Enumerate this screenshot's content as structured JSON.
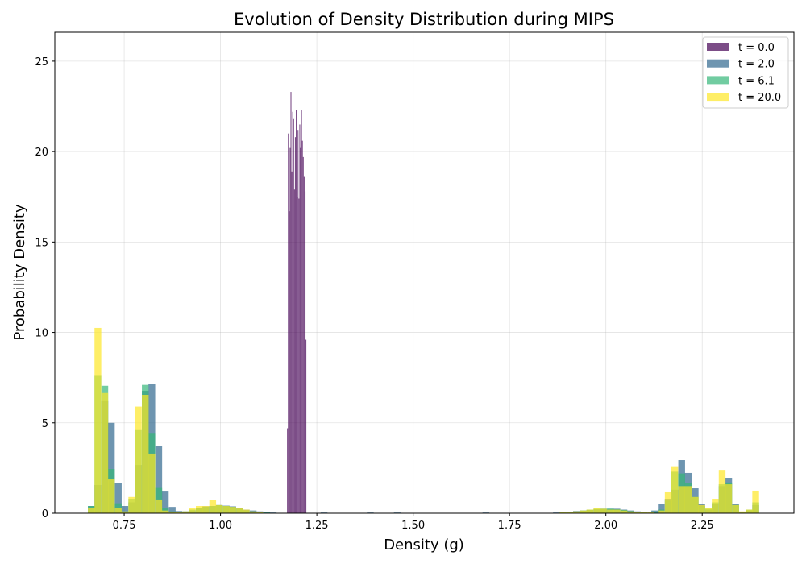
{
  "chart_data": {
    "type": "bar",
    "subtype": "overlapping-histogram",
    "title": "Evolution of Density Distribution during MIPS",
    "xlabel": "Density (g)",
    "ylabel": "Probability Density",
    "xlim": [
      0.57,
      2.488
    ],
    "ylim": [
      0,
      26.6
    ],
    "xticks": [
      "0.75",
      "1.00",
      "1.25",
      "1.50",
      "1.75",
      "2.00",
      "2.25"
    ],
    "xtick_values": [
      0.75,
      1.0,
      1.25,
      1.5,
      1.75,
      2.0,
      2.25
    ],
    "yticks": [
      "0",
      "5",
      "10",
      "15",
      "20",
      "25"
    ],
    "ytick_values": [
      0,
      5,
      10,
      15,
      20,
      25
    ],
    "grid": true,
    "legend_position": "top-right",
    "opacity": 0.7,
    "series": [
      {
        "name": "t = 0.0",
        "color": "#440154",
        "binwidth": 0.00228,
        "bins": [
          [
            1.1726,
            4.7
          ],
          [
            1.1749,
            21
          ],
          [
            1.1772,
            16.7
          ],
          [
            1.1794,
            20.2
          ],
          [
            1.1817,
            23.3
          ],
          [
            1.184,
            18.9
          ],
          [
            1.1863,
            22.2
          ],
          [
            1.1886,
            21.8
          ],
          [
            1.1909,
            17.9
          ],
          [
            1.1931,
            20.8
          ],
          [
            1.1954,
            22.3
          ],
          [
            1.1977,
            17.5
          ],
          [
            1.2,
            21.2
          ],
          [
            1.2023,
            17.4
          ],
          [
            1.2046,
            21.5
          ],
          [
            1.2068,
            20.2
          ],
          [
            1.2091,
            22.3
          ],
          [
            1.2114,
            20.6
          ],
          [
            1.2137,
            19.7
          ],
          [
            1.216,
            18.6
          ],
          [
            1.2183,
            17.8
          ],
          [
            1.2205,
            9.6
          ]
        ]
      },
      {
        "name": "t = 2.0",
        "color": "#31688e",
        "binwidth": 0.0175,
        "bins": [
          [
            0.656,
            0.4
          ],
          [
            0.673,
            1.56
          ],
          [
            0.691,
            6.2
          ],
          [
            0.708,
            5.0
          ],
          [
            0.726,
            1.65
          ],
          [
            0.743,
            0.4
          ],
          [
            0.761,
            0.6
          ],
          [
            0.778,
            2.67
          ],
          [
            0.796,
            6.77
          ],
          [
            0.813,
            7.17
          ],
          [
            0.831,
            3.7
          ],
          [
            0.848,
            1.2
          ],
          [
            0.866,
            0.35
          ],
          [
            0.883,
            0.12
          ],
          [
            0.901,
            0.1
          ],
          [
            0.918,
            0.15
          ],
          [
            0.936,
            0.3
          ],
          [
            0.953,
            0.38
          ],
          [
            0.971,
            0.4
          ],
          [
            0.988,
            0.45
          ],
          [
            1.006,
            0.42
          ],
          [
            1.023,
            0.38
          ],
          [
            1.041,
            0.3
          ],
          [
            1.058,
            0.2
          ],
          [
            1.076,
            0.15
          ],
          [
            1.093,
            0.1
          ],
          [
            1.111,
            0.06
          ],
          [
            1.128,
            0.04
          ],
          [
            1.26,
            0.04
          ],
          [
            1.38,
            0.04
          ],
          [
            1.45,
            0.04
          ],
          [
            1.68,
            0.04
          ],
          [
            1.863,
            0.04
          ],
          [
            1.88,
            0.05
          ],
          [
            1.898,
            0.08
          ],
          [
            1.915,
            0.12
          ],
          [
            1.933,
            0.15
          ],
          [
            1.95,
            0.18
          ],
          [
            1.968,
            0.22
          ],
          [
            1.985,
            0.25
          ],
          [
            2.003,
            0.25
          ],
          [
            2.02,
            0.25
          ],
          [
            2.038,
            0.2
          ],
          [
            2.055,
            0.15
          ],
          [
            2.073,
            0.1
          ],
          [
            2.09,
            0.08
          ],
          [
            2.108,
            0.08
          ],
          [
            2.118,
            0.15
          ],
          [
            2.135,
            0.5
          ],
          [
            2.153,
            0.8
          ],
          [
            2.17,
            1.3
          ],
          [
            2.188,
            2.94
          ],
          [
            2.205,
            2.23
          ],
          [
            2.223,
            1.38
          ],
          [
            2.24,
            0.53
          ],
          [
            2.258,
            0.2
          ],
          [
            2.275,
            0.5
          ],
          [
            2.293,
            1.5
          ],
          [
            2.31,
            1.96
          ],
          [
            2.328,
            0.5
          ],
          [
            2.345,
            0.05
          ],
          [
            2.363,
            0.15
          ],
          [
            2.38,
            0.45
          ]
        ]
      },
      {
        "name": "t = 6.1",
        "color": "#35b779",
        "binwidth": 0.0175,
        "bins": [
          [
            0.656,
            0.4
          ],
          [
            0.673,
            7.6
          ],
          [
            0.691,
            7.05
          ],
          [
            0.708,
            2.45
          ],
          [
            0.726,
            0.55
          ],
          [
            0.743,
            0.1
          ],
          [
            0.761,
            0.8
          ],
          [
            0.778,
            4.6
          ],
          [
            0.796,
            7.1
          ],
          [
            0.813,
            4.4
          ],
          [
            0.831,
            1.4
          ],
          [
            0.848,
            0.3
          ],
          [
            0.866,
            0.1
          ],
          [
            0.883,
            0.08
          ],
          [
            0.901,
            0.1
          ],
          [
            0.918,
            0.2
          ],
          [
            0.936,
            0.3
          ],
          [
            0.953,
            0.35
          ],
          [
            0.971,
            0.4
          ],
          [
            0.988,
            0.45
          ],
          [
            1.006,
            0.4
          ],
          [
            1.023,
            0.35
          ],
          [
            1.041,
            0.25
          ],
          [
            1.058,
            0.15
          ],
          [
            1.076,
            0.1
          ],
          [
            1.093,
            0.06
          ],
          [
            1.111,
            0.04
          ],
          [
            1.88,
            0.05
          ],
          [
            1.898,
            0.08
          ],
          [
            1.915,
            0.1
          ],
          [
            1.933,
            0.15
          ],
          [
            1.95,
            0.2
          ],
          [
            1.968,
            0.25
          ],
          [
            1.985,
            0.25
          ],
          [
            2.003,
            0.25
          ],
          [
            2.02,
            0.22
          ],
          [
            2.038,
            0.18
          ],
          [
            2.055,
            0.12
          ],
          [
            2.073,
            0.08
          ],
          [
            2.09,
            0.06
          ],
          [
            2.118,
            0.1
          ],
          [
            2.135,
            0.2
          ],
          [
            2.153,
            0.7
          ],
          [
            2.17,
            2.3
          ],
          [
            2.188,
            2.2
          ],
          [
            2.205,
            1.65
          ],
          [
            2.223,
            0.9
          ],
          [
            2.24,
            0.4
          ],
          [
            2.258,
            0.25
          ],
          [
            2.275,
            0.6
          ],
          [
            2.293,
            1.6
          ],
          [
            2.31,
            1.7
          ],
          [
            2.328,
            0.45
          ],
          [
            2.345,
            0.05
          ],
          [
            2.363,
            0.2
          ],
          [
            2.38,
            0.6
          ]
        ]
      },
      {
        "name": "t = 20.0",
        "color": "#fde725",
        "binwidth": 0.0175,
        "bins": [
          [
            0.656,
            0.3
          ],
          [
            0.673,
            10.25
          ],
          [
            0.691,
            6.65
          ],
          [
            0.708,
            1.87
          ],
          [
            0.726,
            0.27
          ],
          [
            0.743,
            0.1
          ],
          [
            0.761,
            0.9
          ],
          [
            0.778,
            5.9
          ],
          [
            0.796,
            6.55
          ],
          [
            0.813,
            3.3
          ],
          [
            0.831,
            0.76
          ],
          [
            0.848,
            0.15
          ],
          [
            0.866,
            0.08
          ],
          [
            0.883,
            0.05
          ],
          [
            0.901,
            0.1
          ],
          [
            0.918,
            0.3
          ],
          [
            0.936,
            0.4
          ],
          [
            0.953,
            0.4
          ],
          [
            0.971,
            0.72
          ],
          [
            0.988,
            0.45
          ],
          [
            1.006,
            0.4
          ],
          [
            1.023,
            0.35
          ],
          [
            1.041,
            0.3
          ],
          [
            1.058,
            0.2
          ],
          [
            1.076,
            0.1
          ],
          [
            1.093,
            0.05
          ],
          [
            1.88,
            0.05
          ],
          [
            1.898,
            0.08
          ],
          [
            1.915,
            0.1
          ],
          [
            1.933,
            0.15
          ],
          [
            1.95,
            0.2
          ],
          [
            1.968,
            0.3
          ],
          [
            1.985,
            0.25
          ],
          [
            2.003,
            0.2
          ],
          [
            2.02,
            0.2
          ],
          [
            2.038,
            0.15
          ],
          [
            2.055,
            0.1
          ],
          [
            2.073,
            0.08
          ],
          [
            2.09,
            0.06
          ],
          [
            2.108,
            0.05
          ],
          [
            2.135,
            0.15
          ],
          [
            2.153,
            1.16
          ],
          [
            2.17,
            2.6
          ],
          [
            2.188,
            1.5
          ],
          [
            2.205,
            1.5
          ],
          [
            2.223,
            0.9
          ],
          [
            2.24,
            0.45
          ],
          [
            2.258,
            0.3
          ],
          [
            2.275,
            0.8
          ],
          [
            2.293,
            2.4
          ],
          [
            2.31,
            1.6
          ],
          [
            2.328,
            0.45
          ],
          [
            2.345,
            0.1
          ],
          [
            2.363,
            0.2
          ],
          [
            2.38,
            1.25
          ]
        ]
      }
    ]
  }
}
